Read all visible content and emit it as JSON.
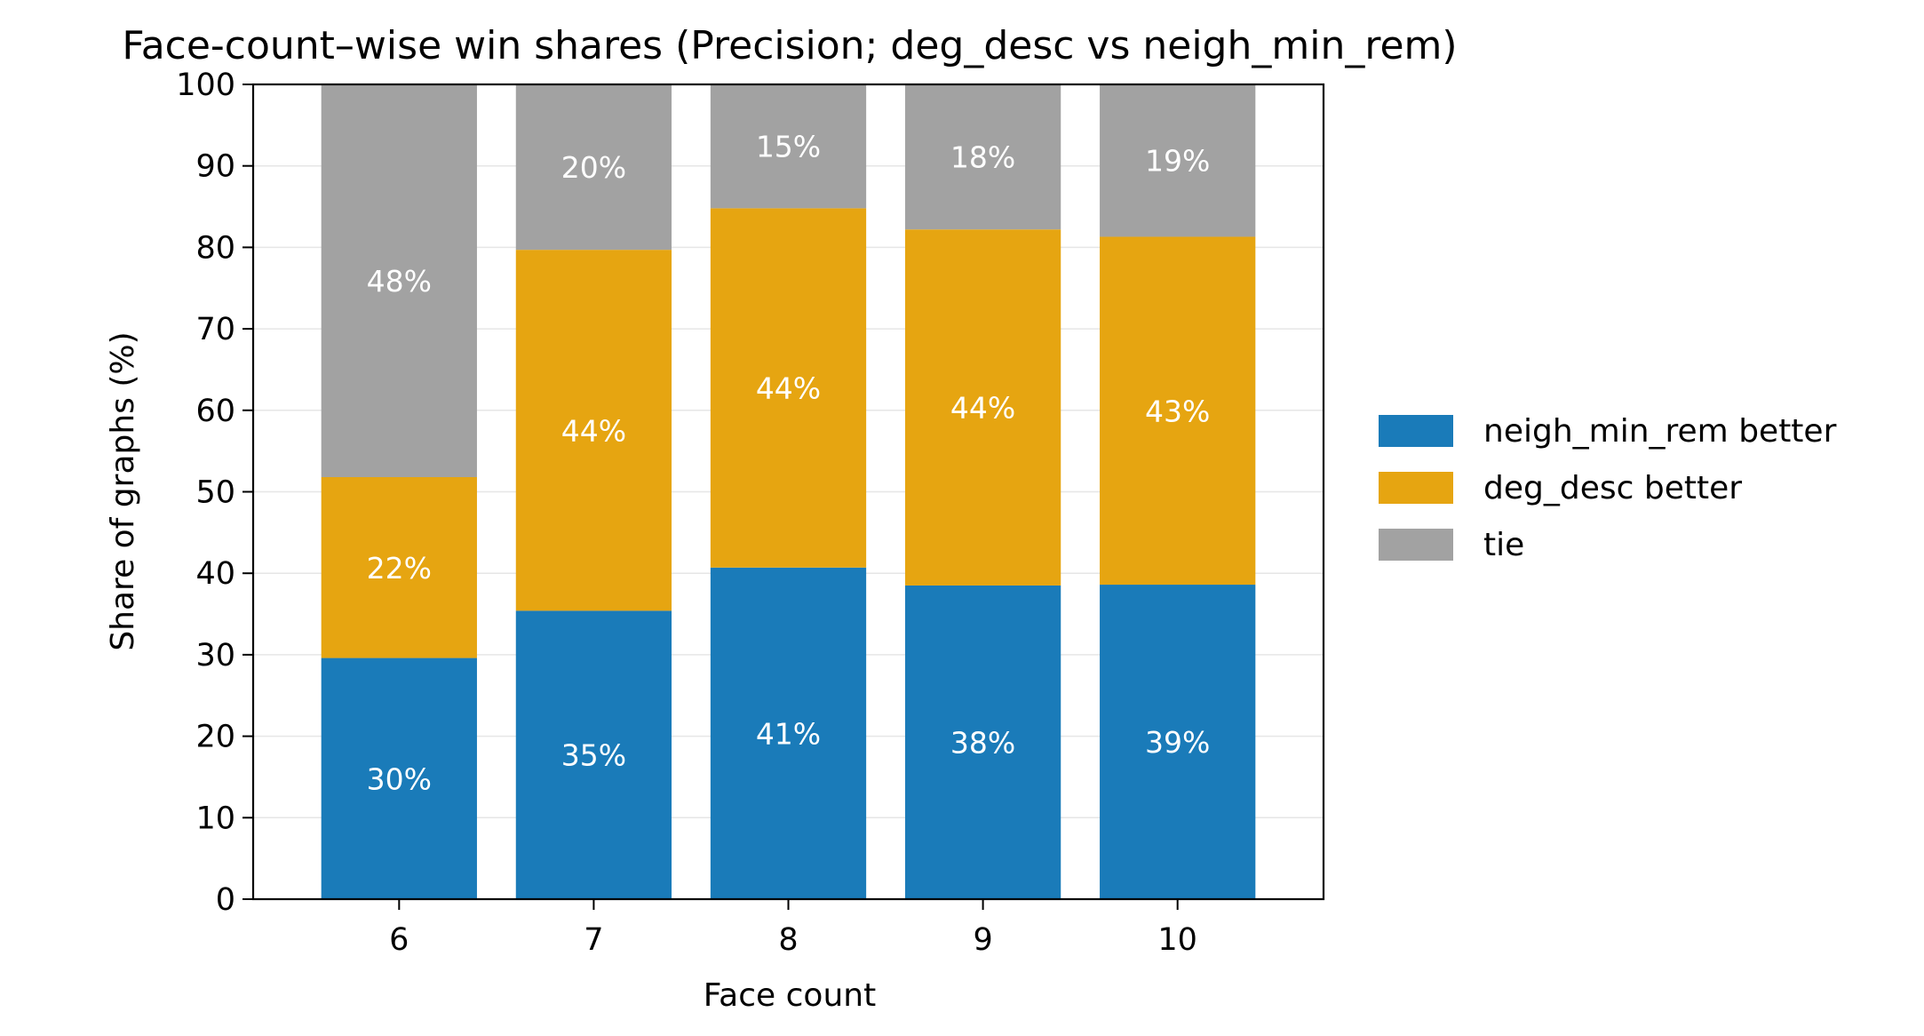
{
  "chart_data": {
    "type": "bar",
    "stacked": true,
    "title": "Face-count–wise win shares (Precision; deg_desc vs neigh_min_rem)",
    "xlabel": "Face count",
    "ylabel": "Share of graphs (%)",
    "categories": [
      "6",
      "7",
      "8",
      "9",
      "10"
    ],
    "ylim": [
      0,
      100
    ],
    "yticks": [
      "0",
      "10",
      "20",
      "30",
      "40",
      "50",
      "60",
      "70",
      "80",
      "90",
      "100"
    ],
    "grid": "horizontal",
    "legend_position": "right",
    "series": [
      {
        "name": "neigh_min_rem better",
        "color": "#1a7bb9",
        "values": [
          29.6,
          35.4,
          40.7,
          38.5,
          38.6
        ],
        "labels": [
          "30%",
          "35%",
          "41%",
          "38%",
          "39%"
        ]
      },
      {
        "name": "deg_desc better",
        "color": "#e6a511",
        "values": [
          22.2,
          44.3,
          44.1,
          43.7,
          42.7
        ],
        "labels": [
          "22%",
          "44%",
          "44%",
          "44%",
          "43%"
        ]
      },
      {
        "name": "tie",
        "color": "#a2a2a2",
        "values": [
          48.2,
          20.3,
          15.2,
          17.8,
          18.7
        ],
        "labels": [
          "48%",
          "20%",
          "15%",
          "18%",
          "19%"
        ]
      }
    ]
  }
}
